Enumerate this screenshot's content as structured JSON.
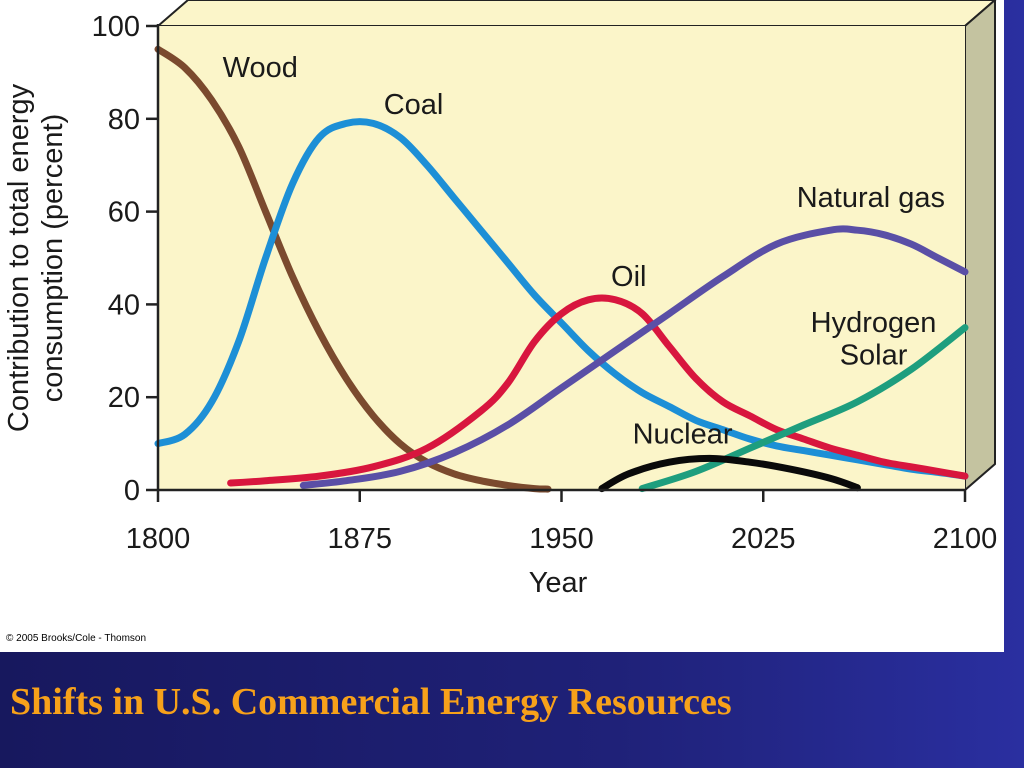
{
  "slide": {
    "title": "Shifts in U.S. Commercial Energy Resources",
    "copyright": "© 2005 Brooks/Cole - Thomson"
  },
  "colors": {
    "plot_background": "#fbf5c9",
    "side_face": "#c4c3a0",
    "title_color": "#f7a11a",
    "slide_background": "#1b1c6a"
  },
  "chart_data": {
    "type": "line",
    "title": "",
    "xlabel": "Year",
    "ylabel": [
      "Contribution to total energy",
      "consumption (percent)"
    ],
    "xlim": [
      1800,
      2100
    ],
    "ylim": [
      0,
      100
    ],
    "xticks": [
      1800,
      1875,
      1950,
      2025,
      2100
    ],
    "yticks": [
      0,
      20,
      40,
      60,
      80,
      100
    ],
    "grid": false,
    "legend": "inline labels",
    "series": [
      {
        "name": "Wood",
        "color": "#7b4a2e",
        "x": [
          1800,
          1810,
          1820,
          1830,
          1840,
          1850,
          1860,
          1870,
          1880,
          1890,
          1900,
          1910,
          1920,
          1930,
          1940,
          1945
        ],
        "y": [
          95,
          91,
          84,
          74,
          60,
          46,
          34,
          24,
          16,
          10,
          6,
          3.5,
          2,
          1,
          0.3,
          0.2
        ]
      },
      {
        "name": "Coal",
        "color": "#1d8fd6",
        "x": [
          1800,
          1810,
          1820,
          1830,
          1840,
          1850,
          1860,
          1870,
          1880,
          1890,
          1900,
          1910,
          1920,
          1930,
          1940,
          1950,
          1960,
          1970,
          1980,
          1990,
          2000,
          2010,
          2020,
          2030,
          2040,
          2050,
          2060,
          2070,
          2080,
          2090,
          2100
        ],
        "y": [
          10,
          12,
          19,
          32,
          50,
          66,
          76,
          79,
          79,
          76,
          70,
          63,
          56,
          49,
          42,
          36,
          30,
          25,
          21,
          18,
          15,
          13,
          11,
          9.5,
          8.5,
          7.5,
          6.5,
          5.5,
          4.5,
          3.8,
          3
        ]
      },
      {
        "name": "Oil",
        "color": "#d8163e",
        "x": [
          1827,
          1840,
          1860,
          1880,
          1900,
          1920,
          1930,
          1940,
          1950,
          1960,
          1970,
          1980,
          1990,
          2000,
          2010,
          2020,
          2030,
          2040,
          2050,
          2060,
          2070,
          2080,
          2090,
          2100
        ],
        "y": [
          1.5,
          2,
          3,
          5,
          9,
          17,
          23,
          32,
          38,
          41,
          41,
          38,
          31,
          24,
          19,
          16,
          13,
          11,
          9,
          7.5,
          6,
          5,
          4,
          3
        ]
      },
      {
        "name": "Natural gas",
        "color": "#5a4fa6",
        "x": [
          1854,
          1870,
          1890,
          1910,
          1930,
          1950,
          1970,
          1990,
          2010,
          2030,
          2050,
          2060,
          2070,
          2080,
          2090,
          2100
        ],
        "y": [
          1,
          2,
          4,
          8,
          14,
          22,
          30,
          38,
          46,
          53,
          56,
          56,
          55,
          53,
          50,
          47
        ]
      },
      {
        "name": "Hydrogen Solar",
        "color": "#1e9e7e",
        "x": [
          1980,
          2000,
          2020,
          2040,
          2060,
          2080,
          2100
        ],
        "y": [
          0.3,
          4,
          9,
          14,
          19,
          26,
          35
        ]
      },
      {
        "name": "Nuclear",
        "color": "#0a0a0a",
        "x": [
          1965,
          1975,
          1990,
          2005,
          2020,
          2035,
          2050,
          2060
        ],
        "y": [
          0.3,
          3.5,
          6,
          6.8,
          6,
          4.5,
          2.5,
          0.5
        ]
      }
    ],
    "annotations": [
      {
        "text": "Wood",
        "x": 1838,
        "y": 89
      },
      {
        "text": "Coal",
        "x": 1895,
        "y": 81
      },
      {
        "text": "Oil",
        "x": 1975,
        "y": 44
      },
      {
        "text": "Natural gas",
        "x": 2065,
        "y": 61
      },
      {
        "text": "Hydrogen",
        "x": 2066,
        "y": 34
      },
      {
        "text": "Solar",
        "x": 2066,
        "y": 27
      },
      {
        "text": "Nuclear",
        "x": 1995,
        "y": 10
      }
    ]
  }
}
